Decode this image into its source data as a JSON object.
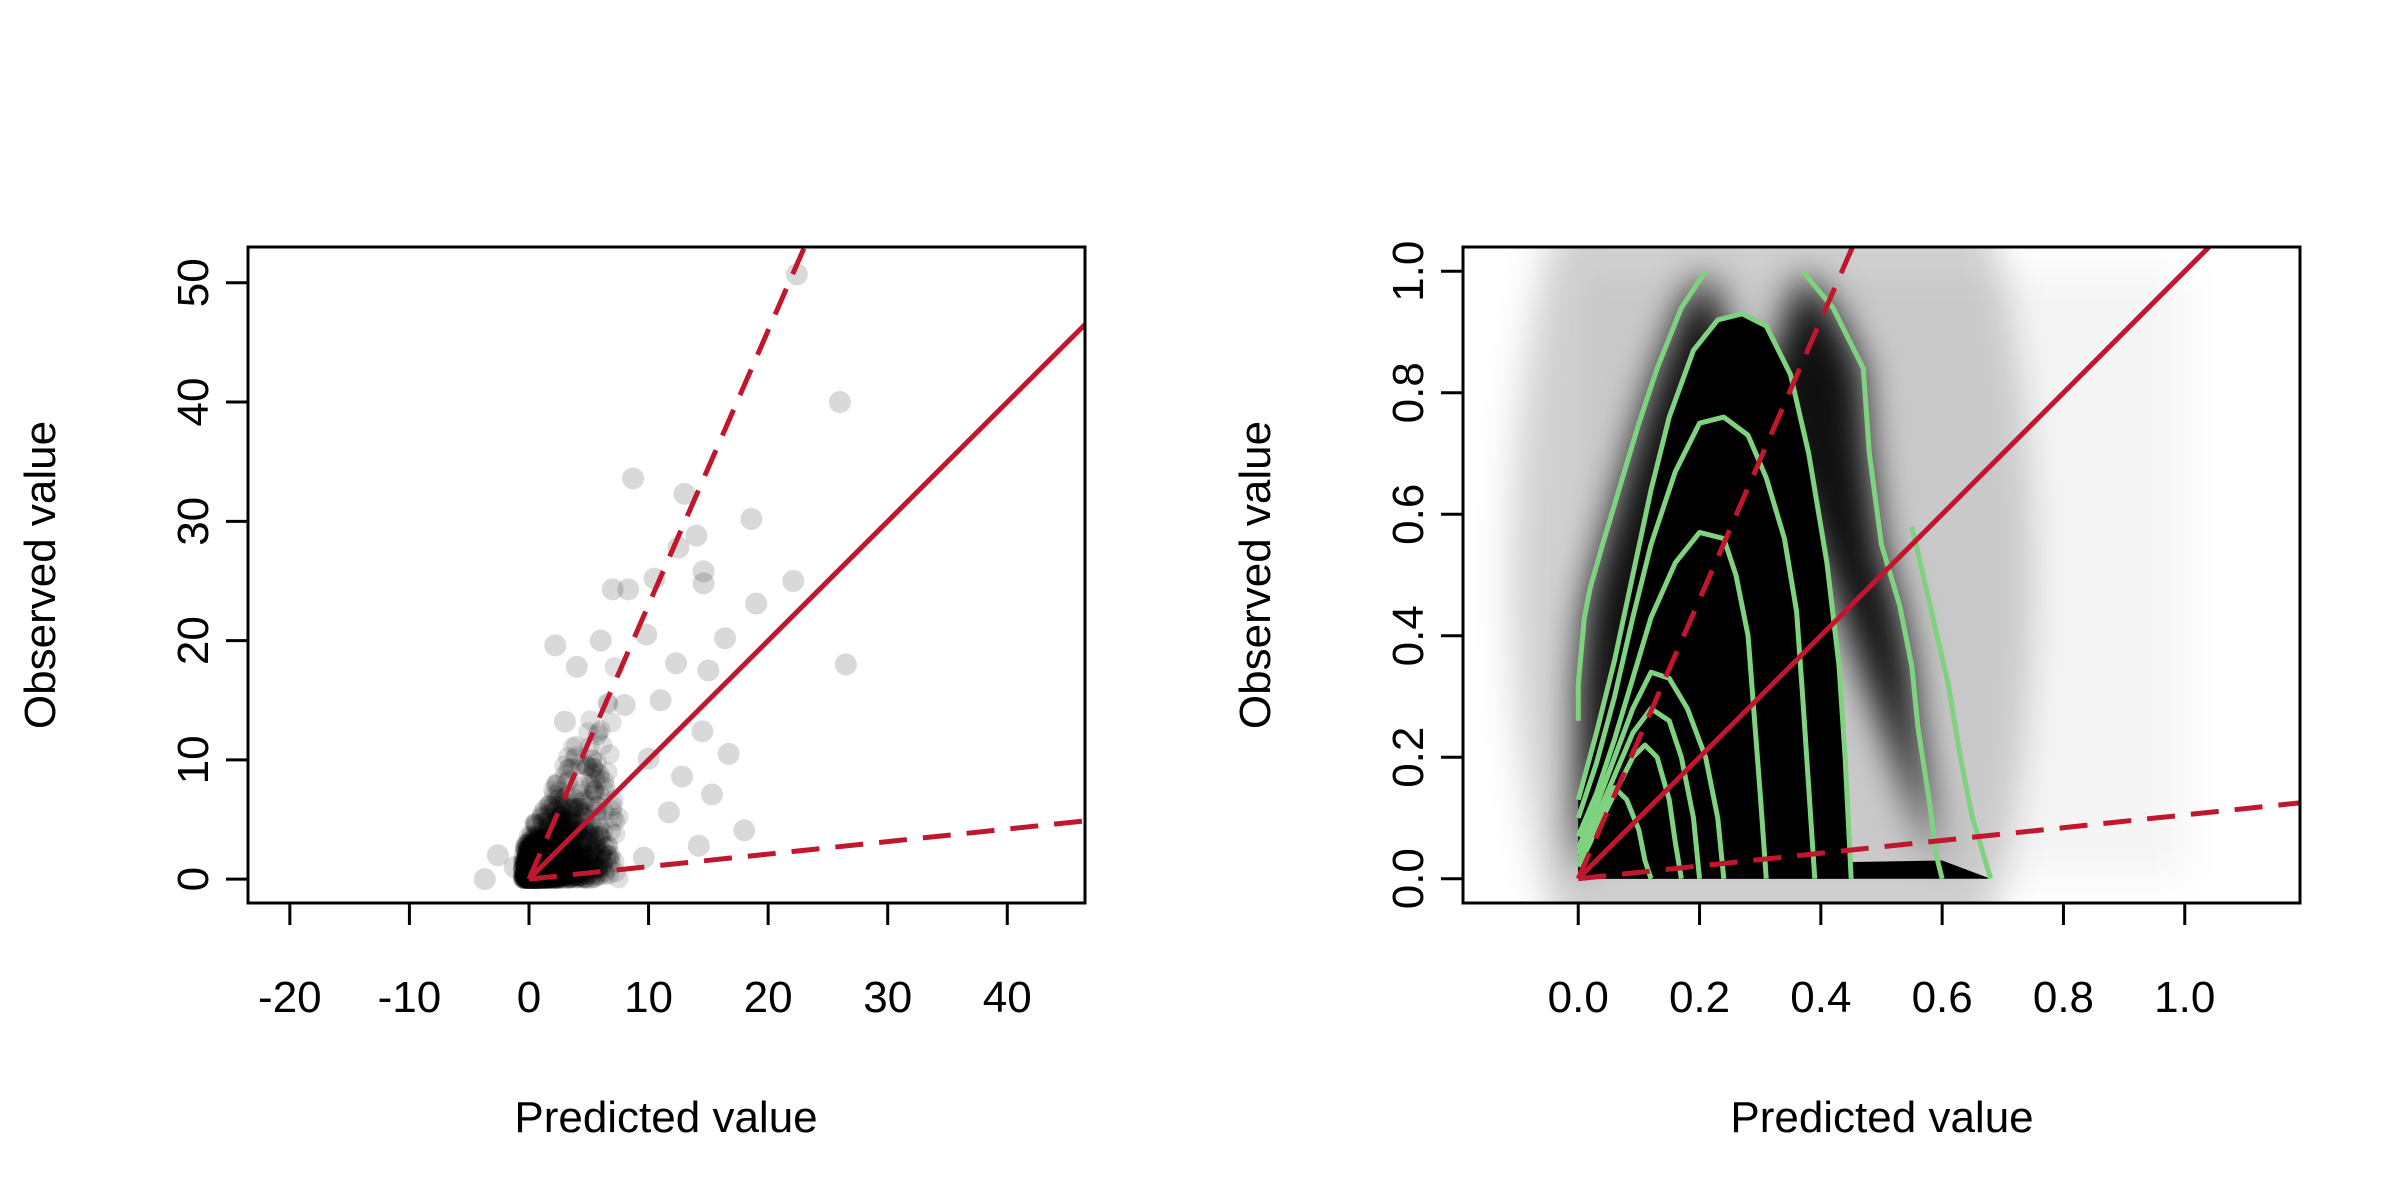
{
  "colors": {
    "reference_line": "#c0172f",
    "points": "#000000",
    "contours": "#7fd27f",
    "axis": "#000000",
    "background": "#ffffff"
  },
  "chart_data": [
    {
      "type": "scatter",
      "title": "",
      "xlabel": "Predicted value",
      "ylabel": "Observed value",
      "xlim": [
        -23.5,
        46.5
      ],
      "ylim": [
        -2,
        53
      ],
      "xticks": [
        "-20",
        "-10",
        "0",
        "10",
        "20",
        "30",
        "40"
      ],
      "yticks": [
        "0",
        "10",
        "20",
        "30",
        "40",
        "50"
      ],
      "grid": false,
      "legend": "none",
      "reference_lines": [
        {
          "style": "solid",
          "intercept": 0,
          "slope": 1.0
        },
        {
          "style": "dashed",
          "intercept": 0,
          "slope": 2.3
        },
        {
          "style": "dashed",
          "intercept": 0,
          "slope": 0.105
        }
      ],
      "notable_points": [
        {
          "x": 22.4,
          "y": 50.7
        },
        {
          "x": 26.0,
          "y": 40.0
        },
        {
          "x": 26.5,
          "y": 18.0
        },
        {
          "x": 8.7,
          "y": 33.6
        },
        {
          "x": 13.0,
          "y": 32.3
        },
        {
          "x": 18.6,
          "y": 30.2
        },
        {
          "x": 14.0,
          "y": 28.8
        },
        {
          "x": 12.5,
          "y": 27.8
        },
        {
          "x": 14.6,
          "y": 25.8
        },
        {
          "x": 22.1,
          "y": 25.0
        },
        {
          "x": 14.6,
          "y": 24.8
        },
        {
          "x": 7.0,
          "y": 24.3
        },
        {
          "x": 8.3,
          "y": 24.3
        },
        {
          "x": 10.5,
          "y": 25.2
        },
        {
          "x": 19.0,
          "y": 23.1
        },
        {
          "x": 9.8,
          "y": 20.5
        },
        {
          "x": 16.4,
          "y": 20.2
        },
        {
          "x": 2.2,
          "y": 19.6
        },
        {
          "x": 6.0,
          "y": 20.0
        },
        {
          "x": 15.0,
          "y": 17.5
        },
        {
          "x": 4.0,
          "y": 17.8
        },
        {
          "x": 12.3,
          "y": 18.1
        },
        {
          "x": 11.0,
          "y": 15.0
        },
        {
          "x": 8.0,
          "y": 14.6
        },
        {
          "x": 14.5,
          "y": 12.4
        },
        {
          "x": 3.0,
          "y": 13.2
        },
        {
          "x": 10.0,
          "y": 10.1
        },
        {
          "x": 16.7,
          "y": 10.5
        },
        {
          "x": 12.8,
          "y": 8.6
        },
        {
          "x": 15.3,
          "y": 7.1
        },
        {
          "x": 18.0,
          "y": 4.1
        },
        {
          "x": 11.7,
          "y": 5.6
        },
        {
          "x": 14.2,
          "y": 2.8
        },
        {
          "x": 9.6,
          "y": 1.8
        },
        {
          "x": 6.6,
          "y": 1.9
        },
        {
          "x": -2.6,
          "y": 2.0
        },
        {
          "x": -3.7,
          "y": 0.0
        },
        {
          "x": -1.2,
          "y": 1.0
        }
      ]
    },
    {
      "type": "scatter",
      "title": "",
      "xlabel": "Predicted value",
      "ylabel": "Observed value",
      "xlim": [
        -0.19,
        1.19
      ],
      "ylim": [
        -0.04,
        1.04
      ],
      "xticks": [
        "0.0",
        "0.2",
        "0.4",
        "0.6",
        "0.8",
        "1.0"
      ],
      "yticks": [
        "0.0",
        "0.2",
        "0.4",
        "0.6",
        "0.8",
        "1.0"
      ],
      "grid": false,
      "legend": "none",
      "reference_lines": [
        {
          "style": "solid",
          "intercept": 0,
          "slope": 1.0
        },
        {
          "style": "dashed",
          "intercept": 0,
          "slope": 2.3
        },
        {
          "style": "dashed",
          "intercept": 0,
          "slope": 0.105
        }
      ],
      "contours": [
        [
          [
            0.0,
            0.26
          ],
          [
            0.0,
            0.32
          ],
          [
            0.01,
            0.43
          ],
          [
            0.02,
            0.48
          ],
          [
            0.04,
            0.55
          ],
          [
            0.07,
            0.65
          ],
          [
            0.1,
            0.75
          ],
          [
            0.13,
            0.84
          ],
          [
            0.17,
            0.94
          ],
          [
            0.21,
            1.0
          ]
        ],
        [
          [
            0.0,
            0.13
          ],
          [
            0.03,
            0.24
          ],
          [
            0.06,
            0.36
          ],
          [
            0.09,
            0.5
          ],
          [
            0.12,
            0.64
          ],
          [
            0.15,
            0.76
          ],
          [
            0.19,
            0.87
          ],
          [
            0.23,
            0.92
          ],
          [
            0.27,
            0.93
          ],
          [
            0.31,
            0.91
          ],
          [
            0.35,
            0.83
          ],
          [
            0.38,
            0.7
          ],
          [
            0.41,
            0.52
          ],
          [
            0.43,
            0.35
          ],
          [
            0.44,
            0.2
          ],
          [
            0.45,
            0.0
          ]
        ],
        [
          [
            0.0,
            0.1
          ],
          [
            0.03,
            0.19
          ],
          [
            0.06,
            0.3
          ],
          [
            0.09,
            0.43
          ],
          [
            0.12,
            0.55
          ],
          [
            0.16,
            0.67
          ],
          [
            0.2,
            0.75
          ],
          [
            0.24,
            0.76
          ],
          [
            0.28,
            0.73
          ],
          [
            0.31,
            0.66
          ],
          [
            0.34,
            0.56
          ],
          [
            0.36,
            0.44
          ],
          [
            0.37,
            0.3
          ],
          [
            0.38,
            0.15
          ],
          [
            0.39,
            0.0
          ]
        ],
        [
          [
            0.0,
            0.07
          ],
          [
            0.03,
            0.14
          ],
          [
            0.06,
            0.23
          ],
          [
            0.09,
            0.33
          ],
          [
            0.12,
            0.43
          ],
          [
            0.16,
            0.52
          ],
          [
            0.2,
            0.57
          ],
          [
            0.24,
            0.56
          ],
          [
            0.26,
            0.5
          ],
          [
            0.28,
            0.4
          ],
          [
            0.29,
            0.27
          ],
          [
            0.3,
            0.14
          ],
          [
            0.31,
            0.0
          ]
        ],
        [
          [
            0.0,
            0.05
          ],
          [
            0.03,
            0.12
          ],
          [
            0.06,
            0.2
          ],
          [
            0.09,
            0.28
          ],
          [
            0.12,
            0.34
          ],
          [
            0.15,
            0.33
          ],
          [
            0.18,
            0.28
          ],
          [
            0.21,
            0.2
          ],
          [
            0.23,
            0.1
          ],
          [
            0.24,
            0.0
          ]
        ],
        [
          [
            0.0,
            0.04
          ],
          [
            0.03,
            0.1
          ],
          [
            0.06,
            0.17
          ],
          [
            0.09,
            0.24
          ],
          [
            0.12,
            0.28
          ],
          [
            0.15,
            0.26
          ],
          [
            0.17,
            0.2
          ],
          [
            0.19,
            0.1
          ],
          [
            0.2,
            0.0
          ]
        ],
        [
          [
            0.0,
            0.03
          ],
          [
            0.03,
            0.08
          ],
          [
            0.06,
            0.14
          ],
          [
            0.09,
            0.2
          ],
          [
            0.11,
            0.22
          ],
          [
            0.13,
            0.2
          ],
          [
            0.15,
            0.13
          ],
          [
            0.16,
            0.06
          ],
          [
            0.17,
            0.0
          ]
        ],
        [
          [
            0.0,
            0.02
          ],
          [
            0.02,
            0.06
          ],
          [
            0.04,
            0.11
          ],
          [
            0.06,
            0.15
          ],
          [
            0.08,
            0.13
          ],
          [
            0.1,
            0.08
          ],
          [
            0.11,
            0.03
          ],
          [
            0.12,
            0.0
          ]
        ],
        [
          [
            0.37,
            1.0
          ],
          [
            0.42,
            0.94
          ],
          [
            0.47,
            0.84
          ],
          [
            0.48,
            0.7
          ],
          [
            0.5,
            0.55
          ],
          [
            0.53,
            0.45
          ],
          [
            0.55,
            0.35
          ],
          [
            0.56,
            0.25
          ],
          [
            0.58,
            0.12
          ],
          [
            0.59,
            0.04
          ],
          [
            0.6,
            0.0
          ]
        ],
        [
          [
            0.55,
            0.58
          ],
          [
            0.58,
            0.45
          ],
          [
            0.61,
            0.32
          ],
          [
            0.63,
            0.2
          ],
          [
            0.65,
            0.1
          ],
          [
            0.68,
            0.0
          ]
        ]
      ]
    }
  ]
}
